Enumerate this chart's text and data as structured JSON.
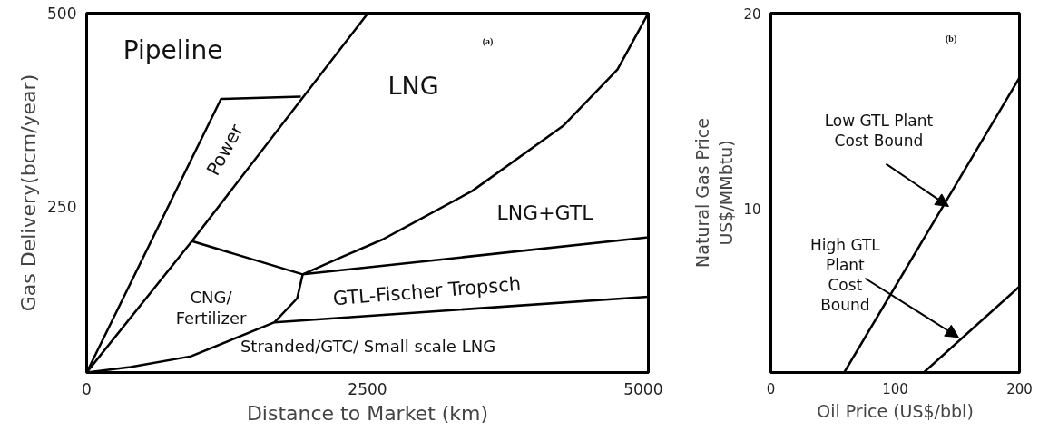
{
  "chart_data": [
    {
      "type": "line",
      "xlabel": "Distance to Market (km)",
      "ylabel": "Gas Delivery(bcm/year)",
      "xlim": [
        0,
        5000
      ],
      "ylim": [
        35,
        500
      ],
      "xticks": [
        0,
        2500,
        5000
      ],
      "yticks": [
        250,
        500
      ],
      "series": [
        {
          "color": "#000000",
          "x": [
            0,
            1196,
            1906
          ],
          "values": [
            35,
            389,
            392
          ]
        },
        {
          "color": "#000000",
          "x": [
            0,
            937,
            2504
          ],
          "values": [
            35,
            205,
            500
          ]
        },
        {
          "color": "#000000",
          "x": [
            937,
            1923,
            5000
          ],
          "values": [
            205,
            162,
            210
          ]
        },
        {
          "color": "#000000",
          "x": [
            1923,
            2250,
            2633,
            3433,
            4241,
            4725,
            5000
          ],
          "values": [
            162,
            183,
            207,
            270,
            354,
            427,
            500
          ]
        },
        {
          "color": "#000000",
          "x": [
            0,
            388,
            929,
            1672,
            1874,
            1923
          ],
          "values": [
            35,
            42,
            56,
            100,
            131,
            162
          ]
        },
        {
          "color": "#000000",
          "x": [
            1672,
            5000
          ],
          "values": [
            100,
            133
          ]
        }
      ],
      "annotations": [
        "Pipeline",
        "Power",
        "LNG",
        "LNG+GTL",
        "GTL-Fischer Tropsch",
        "CNG/\nFertilizer",
        "Stranded/GTC/ Small scale LNG",
        "(a)"
      ]
    },
    {
      "type": "line",
      "xlabel": "Oil Price (US$/bbl)",
      "ylabel": "Natural Gas Price\nUS$/MMbtu)",
      "xlim": [
        0,
        200
      ],
      "ylim": [
        1.6,
        20
      ],
      "xticks": [
        0,
        100,
        200
      ],
      "yticks": [
        10,
        20
      ],
      "series": [
        {
          "color": "#000000",
          "x": [
            59,
            200
          ],
          "values": [
            1.6,
            16.7
          ]
        },
        {
          "color": "#000000",
          "x": [
            123,
            200
          ],
          "values": [
            1.6,
            6
          ]
        }
      ],
      "annotations": [
        "Low GTL Plant\nCost Bound",
        "High GTL\nPlant\nCost\nBound",
        "(b)"
      ]
    }
  ]
}
